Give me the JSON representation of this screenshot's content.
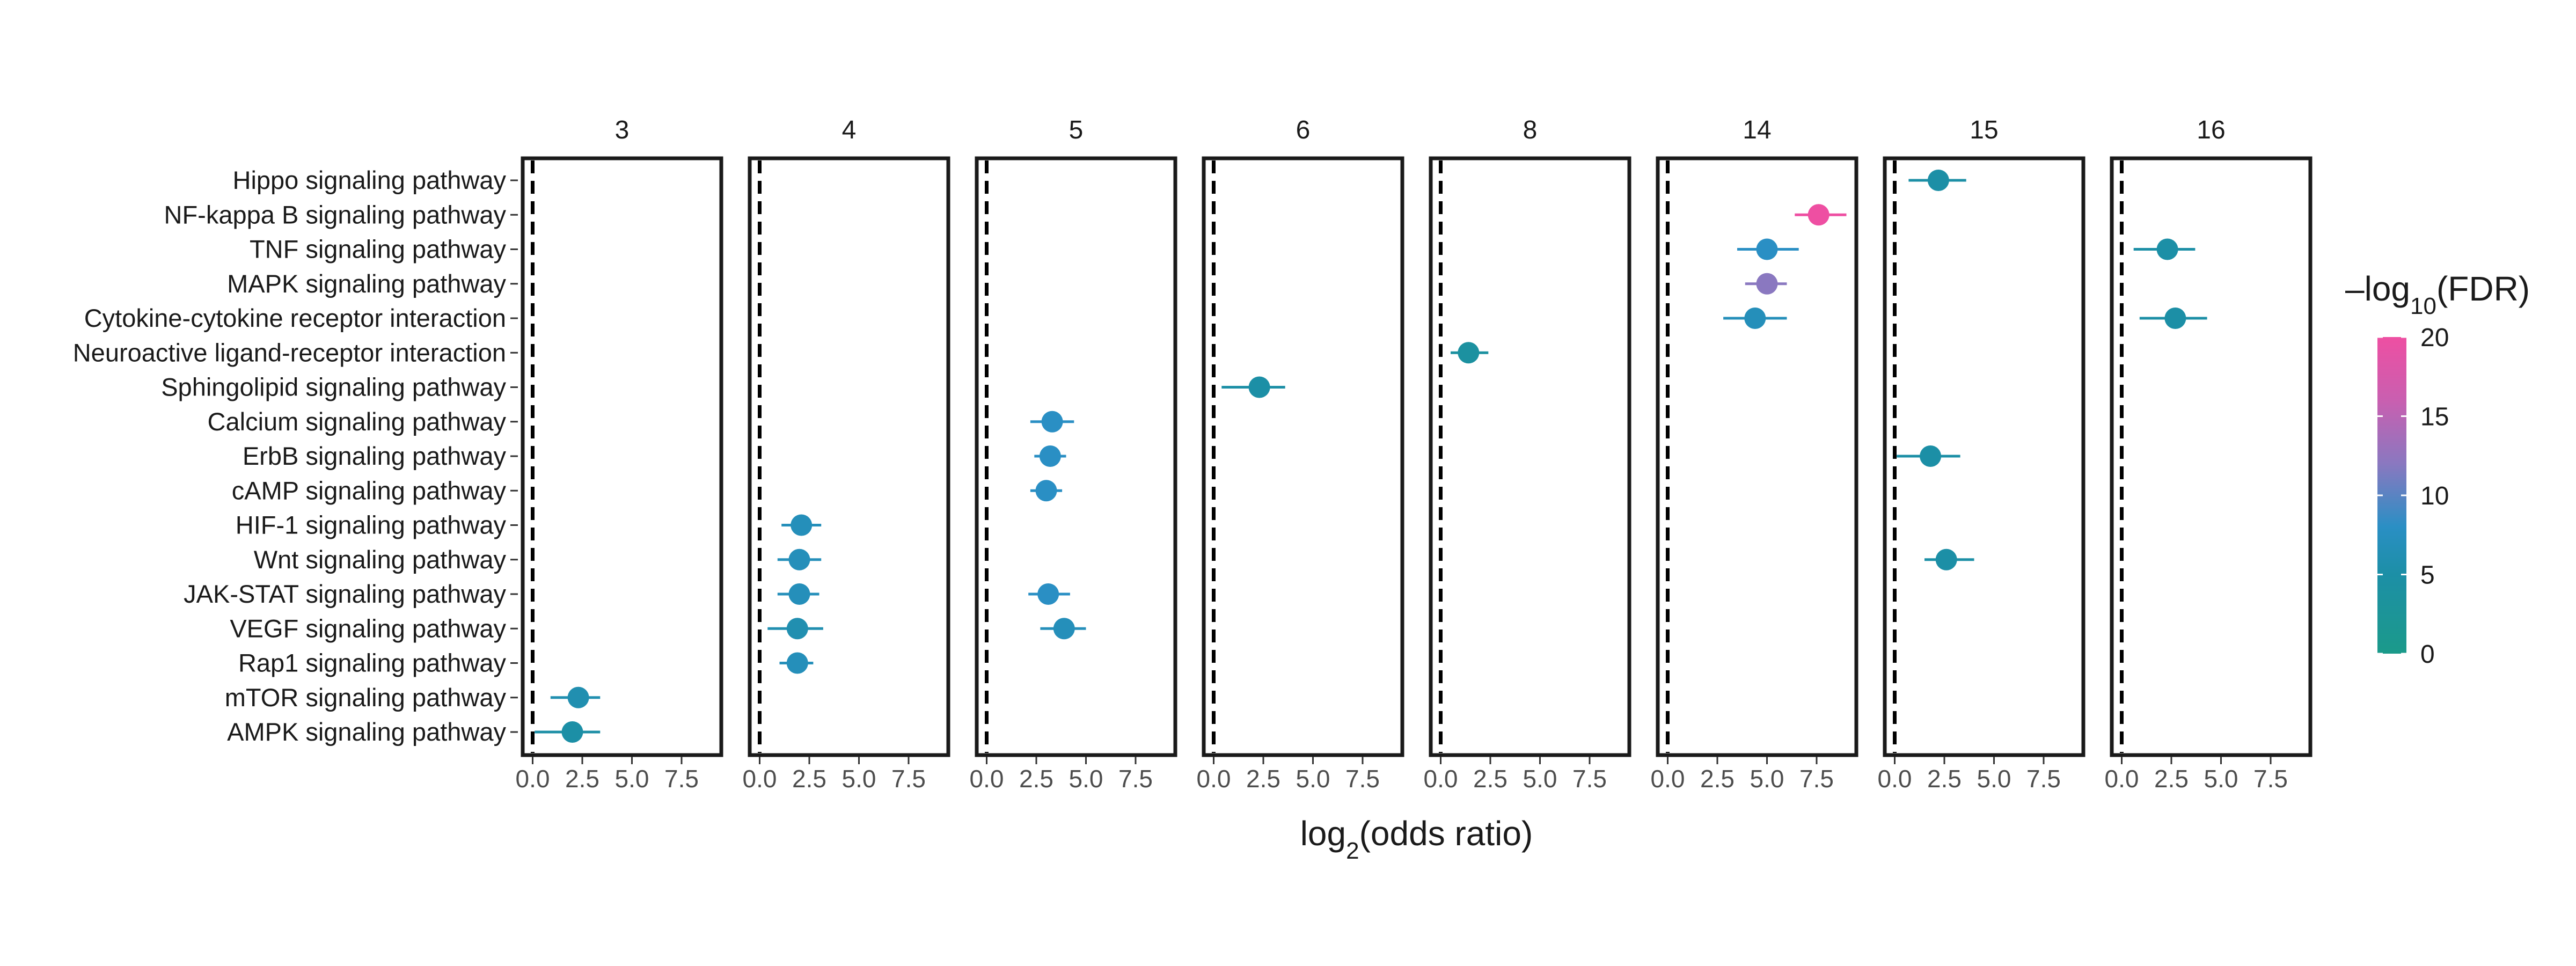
{
  "chart_data": {
    "type": "scatter",
    "subtype": "faceted forest plot (point estimate with horizontal error bars)",
    "facets": [
      "3",
      "4",
      "5",
      "6",
      "8",
      "14",
      "15",
      "16"
    ],
    "categories": [
      "Hippo signaling pathway",
      "NF-kappa B signaling pathway",
      "TNF signaling pathway",
      "MAPK signaling pathway",
      "Cytokine-cytokine receptor interaction",
      "Neuroactive ligand-receptor interaction",
      "Sphingolipid signaling pathway",
      "Calcium signaling pathway",
      "ErbB signaling pathway",
      "cAMP signaling pathway",
      "HIF-1 signaling pathway",
      "Wnt signaling pathway",
      "JAK-STAT signaling pathway",
      "VEGF signaling pathway",
      "Rap1 signaling pathway",
      "mTOR signaling pathway",
      "AMPK signaling pathway"
    ],
    "xlabel": {
      "pre": "log",
      "sub": "2",
      "post": "(odds ratio)"
    },
    "xlim": [
      -0.5,
      9.5
    ],
    "xticks": [
      0.0,
      2.5,
      5.0,
      7.5
    ],
    "xtick_labels": [
      "0.0",
      "2.5",
      "5.0",
      "7.5"
    ],
    "reference_line_x": 0,
    "reference_line_style": "dashed",
    "points": [
      {
        "facet": "3",
        "pathway": "mTOR signaling pathway",
        "x": 2.3,
        "xmin": 0.9,
        "xmax": 3.4,
        "fdr": 6
      },
      {
        "facet": "3",
        "pathway": "AMPK signaling pathway",
        "x": 2.0,
        "xmin": 0.1,
        "xmax": 3.4,
        "fdr": 5
      },
      {
        "facet": "4",
        "pathway": "HIF-1 signaling pathway",
        "x": 2.1,
        "xmin": 1.1,
        "xmax": 3.1,
        "fdr": 7
      },
      {
        "facet": "4",
        "pathway": "Wnt signaling pathway",
        "x": 2.0,
        "xmin": 0.9,
        "xmax": 3.1,
        "fdr": 7
      },
      {
        "facet": "4",
        "pathway": "JAK-STAT signaling pathway",
        "x": 2.0,
        "xmin": 0.9,
        "xmax": 3.0,
        "fdr": 7
      },
      {
        "facet": "4",
        "pathway": "VEGF signaling pathway",
        "x": 1.9,
        "xmin": 0.4,
        "xmax": 3.2,
        "fdr": 6
      },
      {
        "facet": "4",
        "pathway": "Rap1 signaling pathway",
        "x": 1.9,
        "xmin": 1.0,
        "xmax": 2.7,
        "fdr": 7
      },
      {
        "facet": "5",
        "pathway": "Calcium signaling pathway",
        "x": 3.3,
        "xmin": 2.2,
        "xmax": 4.4,
        "fdr": 8
      },
      {
        "facet": "5",
        "pathway": "ErbB signaling pathway",
        "x": 3.2,
        "xmin": 2.4,
        "xmax": 4.0,
        "fdr": 8
      },
      {
        "facet": "5",
        "pathway": "cAMP signaling pathway",
        "x": 3.0,
        "xmin": 2.2,
        "xmax": 3.8,
        "fdr": 8
      },
      {
        "facet": "5",
        "pathway": "JAK-STAT signaling pathway",
        "x": 3.1,
        "xmin": 2.1,
        "xmax": 4.2,
        "fdr": 8
      },
      {
        "facet": "5",
        "pathway": "VEGF signaling pathway",
        "x": 3.9,
        "xmin": 2.7,
        "xmax": 5.0,
        "fdr": 7
      },
      {
        "facet": "6",
        "pathway": "Sphingolipid signaling pathway",
        "x": 2.3,
        "xmin": 0.4,
        "xmax": 3.6,
        "fdr": 5
      },
      {
        "facet": "8",
        "pathway": "Neuroactive ligand-receptor interaction",
        "x": 1.4,
        "xmin": 0.5,
        "xmax": 2.4,
        "fdr": 4
      },
      {
        "facet": "14",
        "pathway": "NF-kappa B signaling pathway",
        "x": 7.6,
        "xmin": 6.4,
        "xmax": 9.0,
        "fdr": 20
      },
      {
        "facet": "14",
        "pathway": "TNF signaling pathway",
        "x": 5.0,
        "xmin": 3.5,
        "xmax": 6.6,
        "fdr": 8
      },
      {
        "facet": "14",
        "pathway": "MAPK signaling pathway",
        "x": 5.0,
        "xmin": 3.9,
        "xmax": 6.0,
        "fdr": 12
      },
      {
        "facet": "14",
        "pathway": "Cytokine-cytokine receptor interaction",
        "x": 4.4,
        "xmin": 2.8,
        "xmax": 6.0,
        "fdr": 7
      },
      {
        "facet": "15",
        "pathway": "Hippo signaling pathway",
        "x": 2.2,
        "xmin": 0.7,
        "xmax": 3.6,
        "fdr": 5
      },
      {
        "facet": "15",
        "pathway": "ErbB signaling pathway",
        "x": 1.8,
        "xmin": 0.1,
        "xmax": 3.3,
        "fdr": 5
      },
      {
        "facet": "15",
        "pathway": "Wnt signaling pathway",
        "x": 2.6,
        "xmin": 1.5,
        "xmax": 4.0,
        "fdr": 5
      },
      {
        "facet": "16",
        "pathway": "TNF signaling pathway",
        "x": 2.3,
        "xmin": 0.6,
        "xmax": 3.7,
        "fdr": 5
      },
      {
        "facet": "16",
        "pathway": "Cytokine-cytokine receptor interaction",
        "x": 2.7,
        "xmin": 0.9,
        "xmax": 4.3,
        "fdr": 5
      }
    ],
    "color_scale": {
      "title": {
        "pre": "–log",
        "sub": "10",
        "post": "(FDR)"
      },
      "min": 0,
      "max": 20,
      "ticks": [
        0,
        5,
        10,
        15,
        20
      ],
      "tick_labels": [
        "0",
        "5",
        "10",
        "15",
        "20"
      ],
      "stops": [
        {
          "value": 0,
          "color": "#1b9a8a"
        },
        {
          "value": 5,
          "color": "#1c8fa6"
        },
        {
          "value": 8,
          "color": "#2a8fc4"
        },
        {
          "value": 12,
          "color": "#8a78c0"
        },
        {
          "value": 16,
          "color": "#c95fb0"
        },
        {
          "value": 20,
          "color": "#ee4fa2"
        }
      ]
    },
    "legend_position": "right",
    "grid": false
  }
}
